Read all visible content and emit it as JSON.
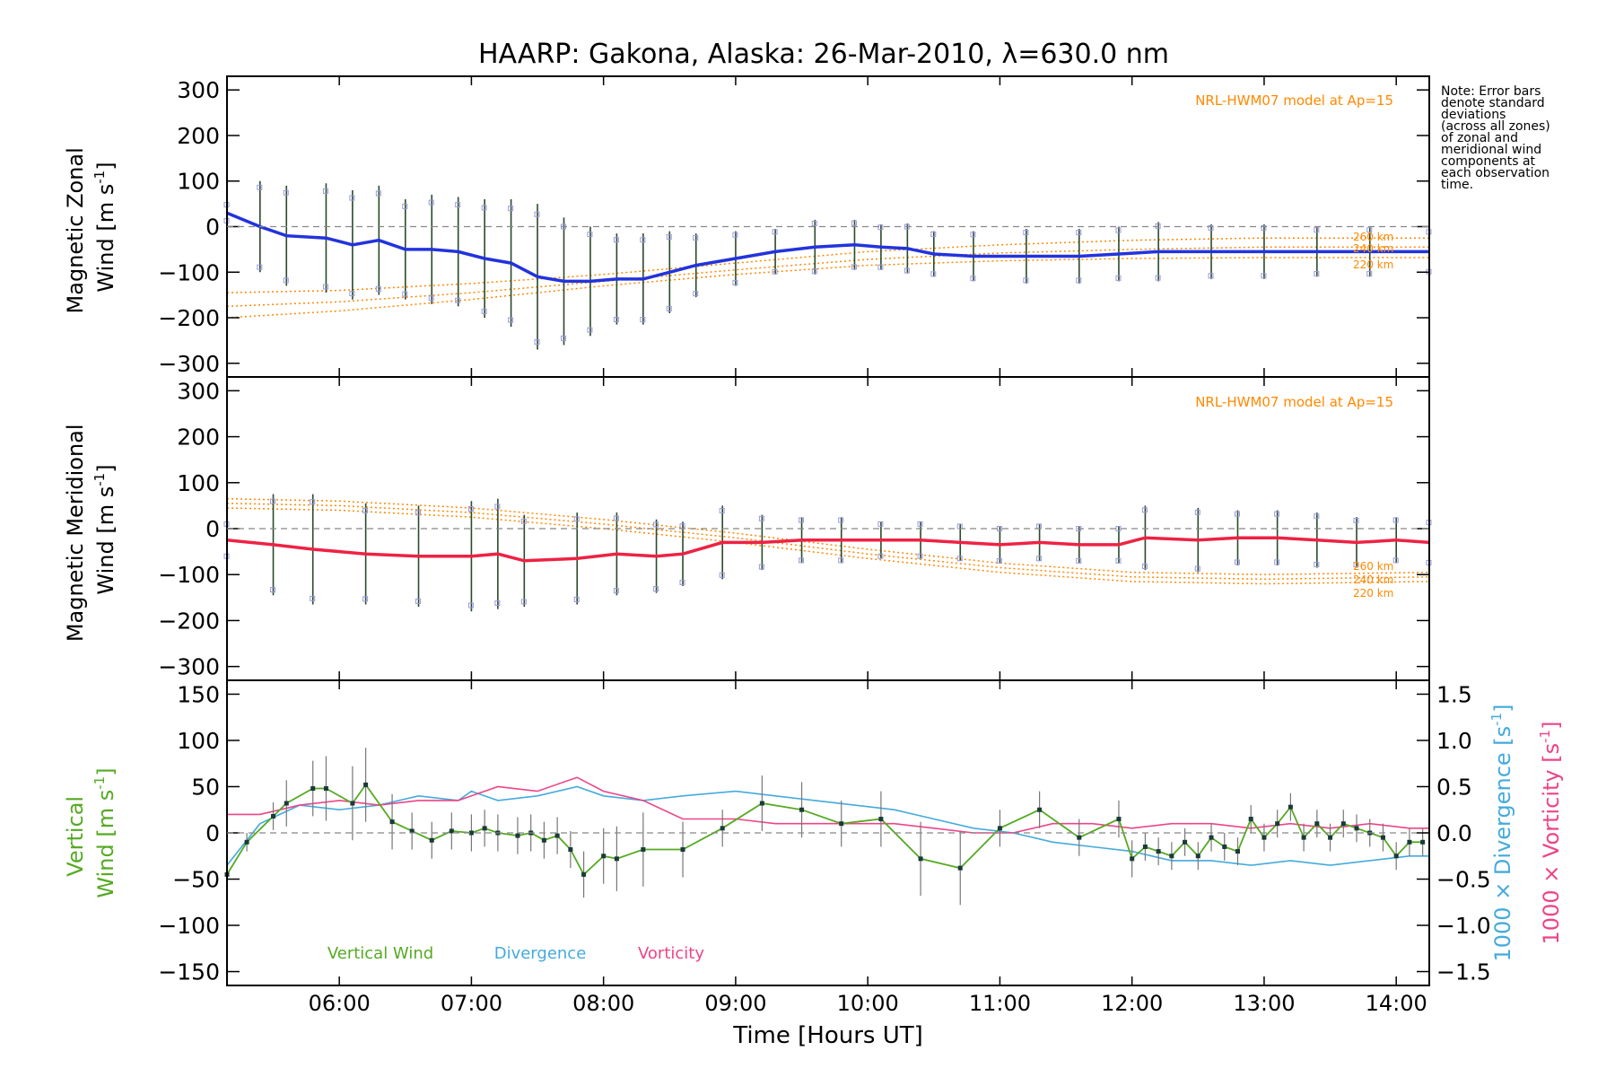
{
  "title": "HAARP: Gakona,  Alaska: 26-Mar-2010, λ=630.0 nm",
  "note_lines": [
    "Note: Error bars",
    "denote standard",
    "deviations",
    "(across all zones)",
    "of zonal and",
    "meridional wind",
    "components at",
    "each observation",
    "time."
  ],
  "x_axis": {
    "label": "Time [Hours UT]",
    "range_hours": [
      5.15,
      14.25
    ],
    "tick_labels": [
      "06:00",
      "07:00",
      "08:00",
      "09:00",
      "10:00",
      "11:00",
      "12:00",
      "13:00",
      "14:00"
    ],
    "tick_hours": [
      6,
      7,
      8,
      9,
      10,
      11,
      12,
      13,
      14
    ]
  },
  "colors": {
    "zonal": "#2233dd",
    "meridional": "#ee2244",
    "vertical": "#55aa22",
    "divergence": "#44aadd",
    "vorticity": "#ee4488",
    "model": "#ff8800",
    "errorbar": "#2a4a2a",
    "sample": "#9999dd",
    "zero": "#888888"
  },
  "chart_data": [
    {
      "type": "line",
      "title": "",
      "ylabel": "Magnetic Zonal Wind [m s-1]",
      "ylabel_lines": [
        "Magnetic Zonal",
        "Wind [m s",
        "-1",
        "]"
      ],
      "ylim": [
        -330,
        330
      ],
      "yticks": [
        -300,
        -200,
        -100,
        0,
        100,
        200,
        300
      ],
      "grid": false,
      "annotation": "NRL-HWM07 model at Ap=15",
      "model_labels": [
        "260 km",
        "240 km",
        "220 km"
      ],
      "series": [
        {
          "name": "zonal",
          "x": [
            5.15,
            5.4,
            5.6,
            5.9,
            6.1,
            6.3,
            6.5,
            6.7,
            6.9,
            7.1,
            7.3,
            7.5,
            7.7,
            7.9,
            8.1,
            8.3,
            8.5,
            8.7,
            9.0,
            9.3,
            9.6,
            9.9,
            10.1,
            10.3,
            10.5,
            10.8,
            11.2,
            11.6,
            11.9,
            12.2,
            12.6,
            13.0,
            13.4,
            13.8,
            14.25
          ],
          "y": [
            30,
            0,
            -20,
            -25,
            -40,
            -30,
            -50,
            -50,
            -55,
            -70,
            -80,
            -110,
            -120,
            -120,
            -115,
            -115,
            -100,
            -85,
            -70,
            -55,
            -45,
            -40,
            -45,
            -48,
            -60,
            -65,
            -65,
            -65,
            -60,
            -55,
            -55,
            -55,
            -55,
            -55,
            -55
          ],
          "err": [
            20,
            100,
            110,
            120,
            120,
            120,
            110,
            120,
            120,
            130,
            140,
            160,
            140,
            120,
            100,
            100,
            90,
            70,
            60,
            50,
            60,
            55,
            50,
            55,
            50,
            55,
            60,
            60,
            60,
            65,
            60,
            60,
            55,
            55,
            50
          ]
        },
        {
          "name": "model-260",
          "x": [
            5.15,
            6,
            7,
            8,
            9,
            10,
            11,
            12,
            13,
            14.25
          ],
          "y": [
            -145,
            -140,
            -125,
            -105,
            -80,
            -55,
            -40,
            -30,
            -25,
            -25
          ]
        },
        {
          "name": "model-240",
          "x": [
            5.15,
            6,
            7,
            8,
            9,
            10,
            11,
            12,
            13,
            14.25
          ],
          "y": [
            -175,
            -165,
            -145,
            -120,
            -95,
            -72,
            -58,
            -50,
            -45,
            -45
          ]
        },
        {
          "name": "model-220",
          "x": [
            5.15,
            6,
            7,
            8,
            9,
            10,
            11,
            12,
            13,
            14.25
          ],
          "y": [
            -200,
            -185,
            -160,
            -130,
            -105,
            -85,
            -75,
            -70,
            -68,
            -68
          ]
        }
      ]
    },
    {
      "type": "line",
      "title": "",
      "ylabel": "Magnetic Meridional Wind [m s-1]",
      "ylabel_lines": [
        "Magnetic Meridional",
        "Wind [m s",
        "-1",
        "]"
      ],
      "ylim": [
        -330,
        330
      ],
      "yticks": [
        -300,
        -200,
        -100,
        0,
        100,
        200,
        300
      ],
      "grid": false,
      "annotation": "NRL-HWM07 model at Ap=15",
      "model_labels": [
        "260 km",
        "240 km",
        "220 km"
      ],
      "series": [
        {
          "name": "meridional",
          "x": [
            5.15,
            5.5,
            5.8,
            6.2,
            6.6,
            7.0,
            7.2,
            7.4,
            7.8,
            8.1,
            8.4,
            8.6,
            8.9,
            9.2,
            9.5,
            9.8,
            10.1,
            10.4,
            10.7,
            11.0,
            11.3,
            11.6,
            11.9,
            12.1,
            12.5,
            12.8,
            13.1,
            13.4,
            13.7,
            14.0,
            14.25
          ],
          "y": [
            -25,
            -35,
            -45,
            -55,
            -60,
            -60,
            -55,
            -70,
            -65,
            -55,
            -60,
            -55,
            -30,
            -30,
            -25,
            -25,
            -25,
            -25,
            -30,
            -35,
            -30,
            -35,
            -35,
            -20,
            -25,
            -20,
            -20,
            -25,
            -30,
            -25,
            -30
          ],
          "err": [
            40,
            110,
            120,
            110,
            110,
            120,
            120,
            100,
            100,
            90,
            80,
            70,
            80,
            60,
            50,
            50,
            40,
            40,
            40,
            40,
            40,
            40,
            40,
            70,
            70,
            60,
            60,
            60,
            55,
            50,
            50
          ]
        },
        {
          "name": "model-260",
          "x": [
            5.15,
            6,
            7,
            8,
            9,
            10,
            11,
            12,
            13,
            14.25
          ],
          "y": [
            65,
            60,
            45,
            20,
            -10,
            -45,
            -75,
            -95,
            -100,
            -95
          ]
        },
        {
          "name": "model-240",
          "x": [
            5.15,
            6,
            7,
            8,
            9,
            10,
            11,
            12,
            13,
            14.25
          ],
          "y": [
            55,
            50,
            35,
            10,
            -20,
            -55,
            -85,
            -105,
            -110,
            -105
          ]
        },
        {
          "name": "model-220",
          "x": [
            5.15,
            6,
            7,
            8,
            9,
            10,
            11,
            12,
            13,
            14.25
          ],
          "y": [
            45,
            40,
            25,
            0,
            -30,
            -65,
            -95,
            -115,
            -120,
            -115
          ]
        }
      ]
    },
    {
      "type": "line",
      "title": "",
      "ylabel": "Vertical Wind [m s-1]",
      "ylabel_lines": [
        "Vertical",
        "Wind [m s",
        "-1",
        "]"
      ],
      "ylim": [
        -165,
        165
      ],
      "yticks": [
        -150,
        -100,
        -50,
        0,
        50,
        100,
        150
      ],
      "y2label_divergence": "1000 × Divergence [s-1]",
      "y2label_vorticity": "1000 × Vorticity [s-1]",
      "y2label_parts": {
        "divergence": "1000 × Divergence [s",
        "vorticity": "1000 × Vorticity [s",
        "sup": "-1",
        "close": "]"
      },
      "y2lim": [
        -1.65,
        1.65
      ],
      "y2ticks": [
        -1.5,
        -1.0,
        -0.5,
        0.0,
        0.5,
        1.0,
        1.5
      ],
      "y2tick_labels": [
        "−1.5",
        "−1.0",
        "−0.5",
        "0.0",
        "0.5",
        "1.0",
        "1.5"
      ],
      "legend": [
        "Vertical Wind",
        "Divergence",
        "Vorticity"
      ],
      "series": [
        {
          "name": "Vertical Wind",
          "axis": "left",
          "x": [
            5.15,
            5.3,
            5.5,
            5.6,
            5.8,
            5.9,
            6.1,
            6.2,
            6.4,
            6.55,
            6.7,
            6.85,
            7.0,
            7.1,
            7.2,
            7.35,
            7.45,
            7.55,
            7.65,
            7.75,
            7.85,
            8.0,
            8.1,
            8.3,
            8.6,
            8.9,
            9.2,
            9.5,
            9.8,
            10.1,
            10.4,
            10.7,
            11.0,
            11.3,
            11.6,
            11.9,
            12.0,
            12.1,
            12.2,
            12.3,
            12.4,
            12.5,
            12.6,
            12.7,
            12.8,
            12.9,
            13.0,
            13.1,
            13.2,
            13.3,
            13.4,
            13.5,
            13.6,
            13.7,
            13.8,
            13.9,
            14.0,
            14.1,
            14.2
          ],
          "y": [
            -45,
            -10,
            18,
            32,
            48,
            48,
            32,
            52,
            12,
            2,
            -8,
            2,
            0,
            5,
            0,
            -3,
            0,
            -8,
            -3,
            -18,
            -45,
            -25,
            -28,
            -18,
            -18,
            5,
            32,
            25,
            10,
            15,
            -28,
            -38,
            5,
            25,
            -5,
            15,
            -28,
            -15,
            -20,
            -25,
            -10,
            -25,
            -5,
            -15,
            -20,
            15,
            -5,
            10,
            28,
            -5,
            10,
            -5,
            10,
            5,
            0,
            -5,
            -25,
            -10,
            -10
          ],
          "err": [
            0,
            10,
            15,
            25,
            30,
            35,
            40,
            40,
            30,
            20,
            20,
            20,
            20,
            20,
            20,
            20,
            20,
            20,
            20,
            20,
            25,
            30,
            35,
            40,
            30,
            20,
            30,
            30,
            25,
            30,
            40,
            40,
            20,
            20,
            20,
            20,
            20,
            15,
            15,
            15,
            15,
            15,
            15,
            15,
            15,
            15,
            15,
            15,
            15,
            15,
            15,
            15,
            15,
            15,
            15,
            15,
            15,
            15,
            15
          ]
        },
        {
          "name": "Divergence",
          "axis": "right",
          "x": [
            5.15,
            5.4,
            5.7,
            6.0,
            6.3,
            6.6,
            6.9,
            7.0,
            7.2,
            7.5,
            7.8,
            8.0,
            8.3,
            8.6,
            9.0,
            9.3,
            9.6,
            9.9,
            10.2,
            10.5,
            10.8,
            11.1,
            11.4,
            11.7,
            12.0,
            12.3,
            12.6,
            12.9,
            13.2,
            13.5,
            13.8,
            14.1,
            14.25
          ],
          "y": [
            -0.35,
            0.1,
            0.3,
            0.25,
            0.3,
            0.4,
            0.35,
            0.45,
            0.35,
            0.4,
            0.5,
            0.4,
            0.35,
            0.4,
            0.45,
            0.4,
            0.35,
            0.3,
            0.25,
            0.15,
            0.05,
            0.0,
            -0.1,
            -0.15,
            -0.2,
            -0.3,
            -0.3,
            -0.35,
            -0.3,
            -0.35,
            -0.3,
            -0.25,
            -0.25
          ]
        },
        {
          "name": "Vorticity",
          "axis": "right",
          "x": [
            5.15,
            5.4,
            5.7,
            6.0,
            6.3,
            6.6,
            6.9,
            7.0,
            7.2,
            7.5,
            7.8,
            8.0,
            8.3,
            8.6,
            9.0,
            9.3,
            9.6,
            9.9,
            10.2,
            10.5,
            10.8,
            11.1,
            11.4,
            11.7,
            12.0,
            12.3,
            12.6,
            12.9,
            13.2,
            13.5,
            13.8,
            14.1,
            14.25
          ],
          "y": [
            0.2,
            0.2,
            0.3,
            0.35,
            0.3,
            0.35,
            0.35,
            0.4,
            0.5,
            0.45,
            0.6,
            0.45,
            0.35,
            0.15,
            0.15,
            0.1,
            0.1,
            0.1,
            0.1,
            0.05,
            0.0,
            0.0,
            0.1,
            0.1,
            0.05,
            0.1,
            0.1,
            0.05,
            0.1,
            0.05,
            0.1,
            0.05,
            0.05
          ]
        }
      ]
    }
  ]
}
